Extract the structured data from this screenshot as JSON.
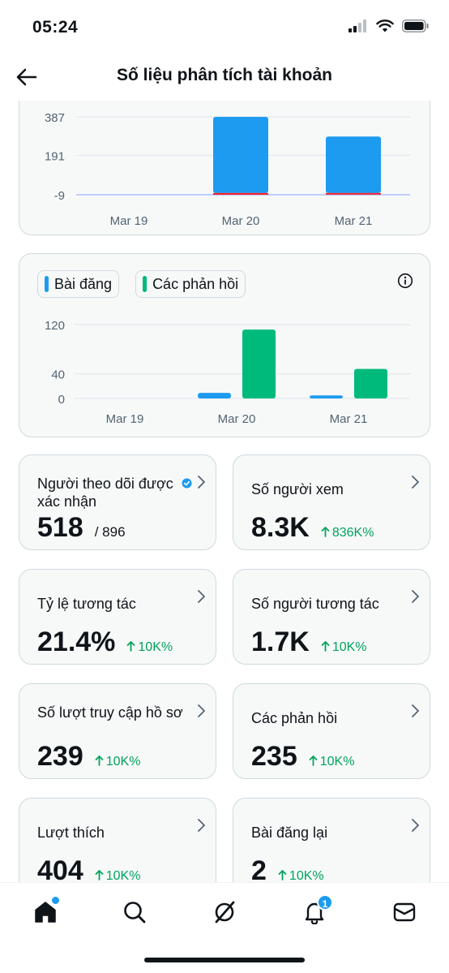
{
  "status_bar": {
    "time": "05:24"
  },
  "header": {
    "title": "Số liệu phân tích tài khoản"
  },
  "chart_data": [
    {
      "type": "bar",
      "categories": [
        "Mar 19",
        "Mar 20",
        "Mar 21"
      ],
      "series": [
        {
          "values": [
            0,
            387,
            287
          ],
          "color": "#1d9bf0"
        },
        {
          "values": [
            0,
            -9,
            -5
          ],
          "color": "#f4212e"
        }
      ],
      "yticks": [
        387,
        191,
        -9
      ],
      "ylim": [
        -9,
        387
      ],
      "grid": true
    },
    {
      "type": "bar",
      "categories": [
        "Mar 19",
        "Mar 20",
        "Mar 21"
      ],
      "series": [
        {
          "name": "Bài đăng",
          "values": [
            0,
            9,
            5
          ],
          "color": "#1d9bf0"
        },
        {
          "name": "Các phản hồi",
          "values": [
            0,
            112,
            48
          ],
          "color": "#00ba7c"
        }
      ],
      "yticks": [
        120,
        40,
        0
      ],
      "ylim": [
        0,
        120
      ],
      "grid": true,
      "legend": "top-left"
    }
  ],
  "stats": [
    {
      "title": "Người theo dõi được xác nhận",
      "value": "518",
      "sub": "/ 896",
      "change": "",
      "verified": true
    },
    {
      "title": "Số người xem",
      "value": "8.3K",
      "sub": "",
      "change": "836K%",
      "verified": false
    },
    {
      "title": "Tỷ lệ tương tác",
      "value": "21.4%",
      "sub": "",
      "change": "10K%",
      "verified": false
    },
    {
      "title": "Số người tương tác",
      "value": "1.7K",
      "sub": "",
      "change": "10K%",
      "verified": false
    },
    {
      "title": "Số lượt truy cập hồ sơ",
      "value": "239",
      "sub": "",
      "change": "10K%",
      "verified": false
    },
    {
      "title": "Các phản hồi",
      "value": "235",
      "sub": "",
      "change": "10K%",
      "verified": false
    },
    {
      "title": "Lượt thích",
      "value": "404",
      "sub": "",
      "change": "10K%",
      "verified": false
    },
    {
      "title": "Bài đăng lại",
      "value": "2",
      "sub": "",
      "change": "10K%",
      "verified": false
    }
  ],
  "nav": {
    "items": [
      "home-icon",
      "search-icon",
      "grok-icon",
      "notifications-icon",
      "messages-icon"
    ],
    "notification_count": "1"
  },
  "icons": {
    "change": "arrow-up-icon",
    "chevron": "chevron-right-icon",
    "info": "info-icon"
  },
  "colors": {
    "accent": "#1d9bf0",
    "positive": "#00a35c",
    "green": "#00ba7c",
    "negative": "#f4212e"
  }
}
